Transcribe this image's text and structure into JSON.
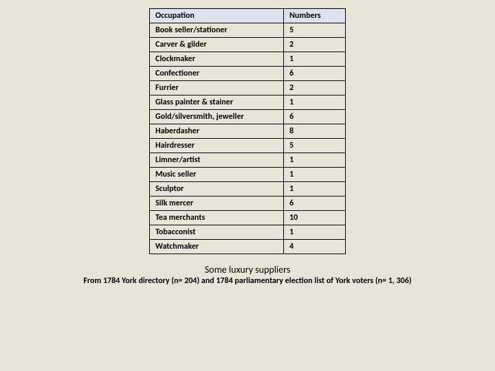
{
  "table": {
    "headers": {
      "occupation": "Occupation",
      "numbers": "Numbers"
    },
    "rows": [
      {
        "occupation": "Book seller/stationer",
        "numbers": "5"
      },
      {
        "occupation": "Carver & gilder",
        "numbers": "2"
      },
      {
        "occupation": "Clockmaker",
        "numbers": "1"
      },
      {
        "occupation": "Confectioner",
        "numbers": "6"
      },
      {
        "occupation": "Furrier",
        "numbers": "2"
      },
      {
        "occupation": "Glass painter & stainer",
        "numbers": "1"
      },
      {
        "occupation": "Gold/silversmith, jeweller",
        "numbers": "6"
      },
      {
        "occupation": "Haberdasher",
        "numbers": "8"
      },
      {
        "occupation": "Hairdresser",
        "numbers": "5"
      },
      {
        "occupation": "Limner/artist",
        "numbers": "1"
      },
      {
        "occupation": "Music seller",
        "numbers": "1"
      },
      {
        "occupation": "Sculptor",
        "numbers": "1"
      },
      {
        "occupation": "Silk mercer",
        "numbers": "6"
      },
      {
        "occupation": "Tea merchants",
        "numbers": "10"
      },
      {
        "occupation": "Tobacconist",
        "numbers": "1"
      },
      {
        "occupation": "Watchmaker",
        "numbers": "4"
      }
    ],
    "header_bg": "#dce3ef",
    "border_color": "#000000",
    "col_widths": {
      "occupation": 195,
      "numbers": 90
    },
    "font_size": 12
  },
  "caption": {
    "title": "Some luxury suppliers",
    "subtitle": "From 1784 York directory (n= 204) and 1784 parliamentary election list of York voters (n= 1, 306)",
    "title_fontsize": 14,
    "subtitle_fontsize": 12
  },
  "page_bg": "#e8e5d8"
}
